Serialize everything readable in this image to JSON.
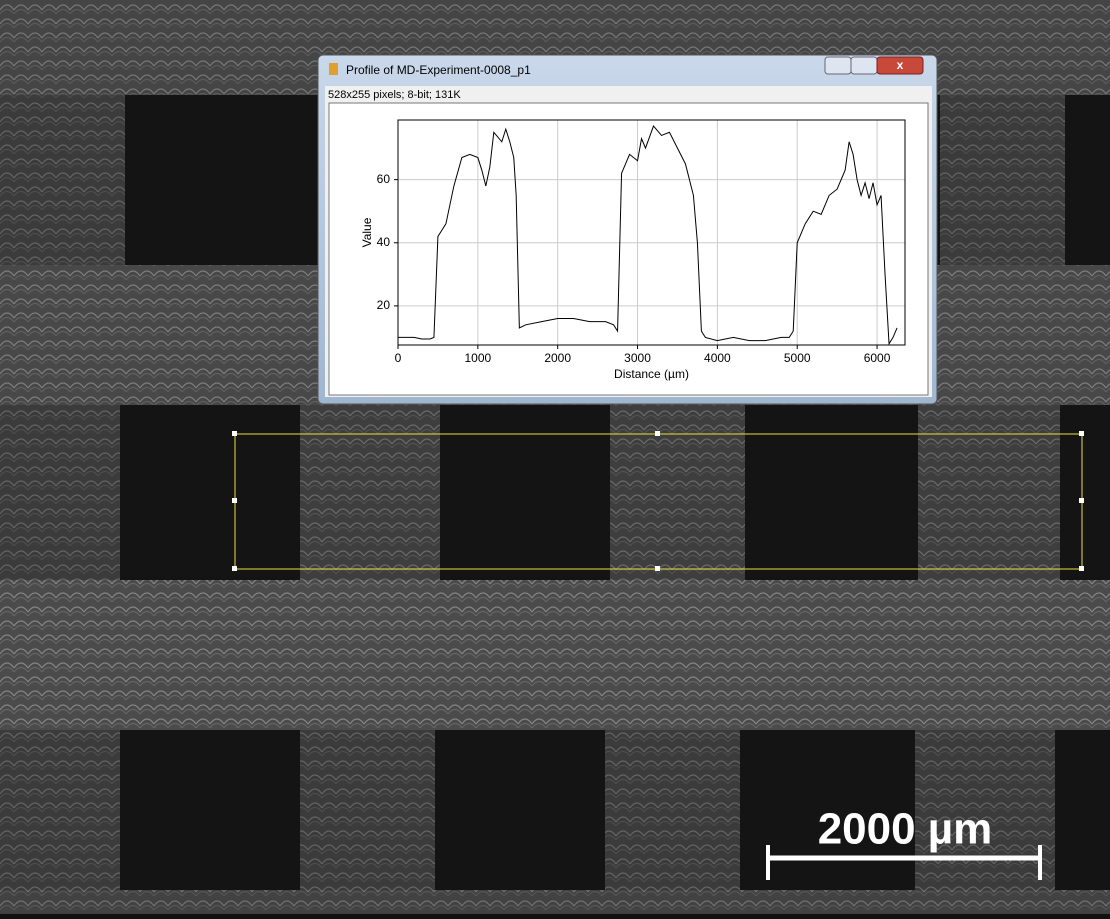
{
  "window": {
    "title": "Profile of MD-Experiment-0008_p1",
    "info": "528x255 pixels; 8-bit; 131K"
  },
  "chart_data": {
    "type": "line",
    "x_label": "Distance (µm)",
    "y_label": "Value",
    "x": [
      0,
      100,
      200,
      300,
      400,
      450,
      500,
      550,
      600,
      700,
      800,
      900,
      1000,
      1050,
      1100,
      1150,
      1200,
      1300,
      1350,
      1400,
      1450,
      1480,
      1520,
      1600,
      1800,
      2000,
      2200,
      2400,
      2600,
      2700,
      2750,
      2800,
      2900,
      3000,
      3050,
      3100,
      3200,
      3300,
      3400,
      3500,
      3600,
      3700,
      3750,
      3800,
      3850,
      4000,
      4200,
      4400,
      4600,
      4800,
      4900,
      4950,
      5000,
      5100,
      5200,
      5300,
      5400,
      5500,
      5600,
      5650,
      5700,
      5750,
      5800,
      5850,
      5900,
      5950,
      6000,
      6050,
      6100,
      6150,
      6200,
      6250
    ],
    "values": [
      10,
      10,
      10,
      9.5,
      9.5,
      10,
      42,
      44,
      46,
      58,
      67,
      68,
      67,
      63,
      58,
      64,
      75,
      72,
      76,
      72,
      67,
      55,
      13,
      14,
      15,
      16,
      16,
      15,
      15,
      14,
      12,
      62,
      68,
      66,
      73,
      70,
      77,
      74,
      75,
      70,
      65,
      55,
      40,
      12,
      10,
      9,
      10,
      9,
      9,
      10,
      10,
      12,
      40,
      46,
      50,
      49,
      55,
      57,
      63,
      72,
      68,
      60,
      55,
      59,
      54,
      59,
      52,
      55,
      30,
      8,
      10,
      13
    ],
    "color": "#000000",
    "xlim": [
      0,
      6350
    ],
    "ylim": [
      7.6,
      78.9
    ],
    "xticks": [
      0,
      1000,
      2000,
      3000,
      4000,
      5000,
      6000
    ],
    "yticks": [
      20,
      40,
      60
    ],
    "grid": true
  },
  "scale_bar": {
    "label": "2000 µm"
  }
}
